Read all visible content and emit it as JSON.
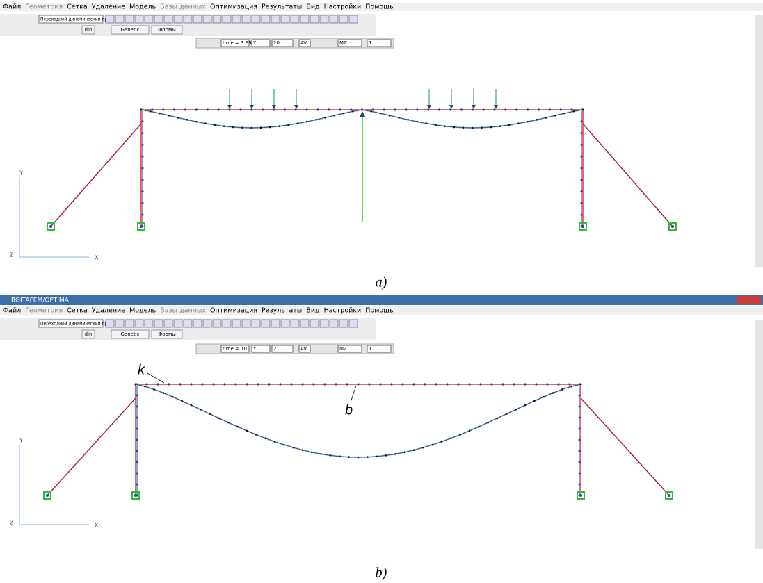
{
  "panels": [
    {
      "menu": [
        {
          "label": "Файл",
          "enabled": true
        },
        {
          "label": "Геометрия",
          "enabled": false
        },
        {
          "label": "Сетка",
          "enabled": true
        },
        {
          "label": "Удаление",
          "enabled": true
        },
        {
          "label": "Модель",
          "enabled": true
        },
        {
          "label": "Базы данных",
          "enabled": false
        },
        {
          "label": "Оптимизация",
          "enabled": true
        },
        {
          "label": "Результаты",
          "enabled": true
        },
        {
          "label": "Вид",
          "enabled": true
        },
        {
          "label": "Настройки",
          "enabled": true
        },
        {
          "label": "Помощь",
          "enabled": true
        }
      ],
      "mode": "Переходной динамический пр",
      "buttons": [
        "din",
        "Genetic",
        "Формы"
      ],
      "result_bar": [
        "time = 3.99",
        "Y",
        "20",
        "AV",
        "MZ",
        "1"
      ],
      "axes": [
        "Y",
        "Z",
        "X"
      ],
      "caption": "a)"
    },
    {
      "window_title": "BGITAFEM/OPTIMA",
      "menu": [
        {
          "label": "Файл",
          "enabled": true
        },
        {
          "label": "Геометрия",
          "enabled": false
        },
        {
          "label": "Сетка",
          "enabled": true
        },
        {
          "label": "Удаление",
          "enabled": true
        },
        {
          "label": "Модель",
          "enabled": true
        },
        {
          "label": "Базы данных",
          "enabled": false
        },
        {
          "label": "Оптимизация",
          "enabled": true
        },
        {
          "label": "Результаты",
          "enabled": true
        },
        {
          "label": "Вид",
          "enabled": true
        },
        {
          "label": "Настройки",
          "enabled": true
        },
        {
          "label": "Помощь",
          "enabled": true
        }
      ],
      "mode": "Переходной динамический пр",
      "buttons": [
        "din",
        "Genetic",
        "Формы"
      ],
      "result_bar": [
        "time = 10",
        "Y",
        "2",
        "AV",
        "MZ",
        "1"
      ],
      "axes": [
        "Y",
        "Z",
        "X"
      ],
      "labels": [
        "k",
        "b"
      ],
      "caption": "b)"
    }
  ]
}
